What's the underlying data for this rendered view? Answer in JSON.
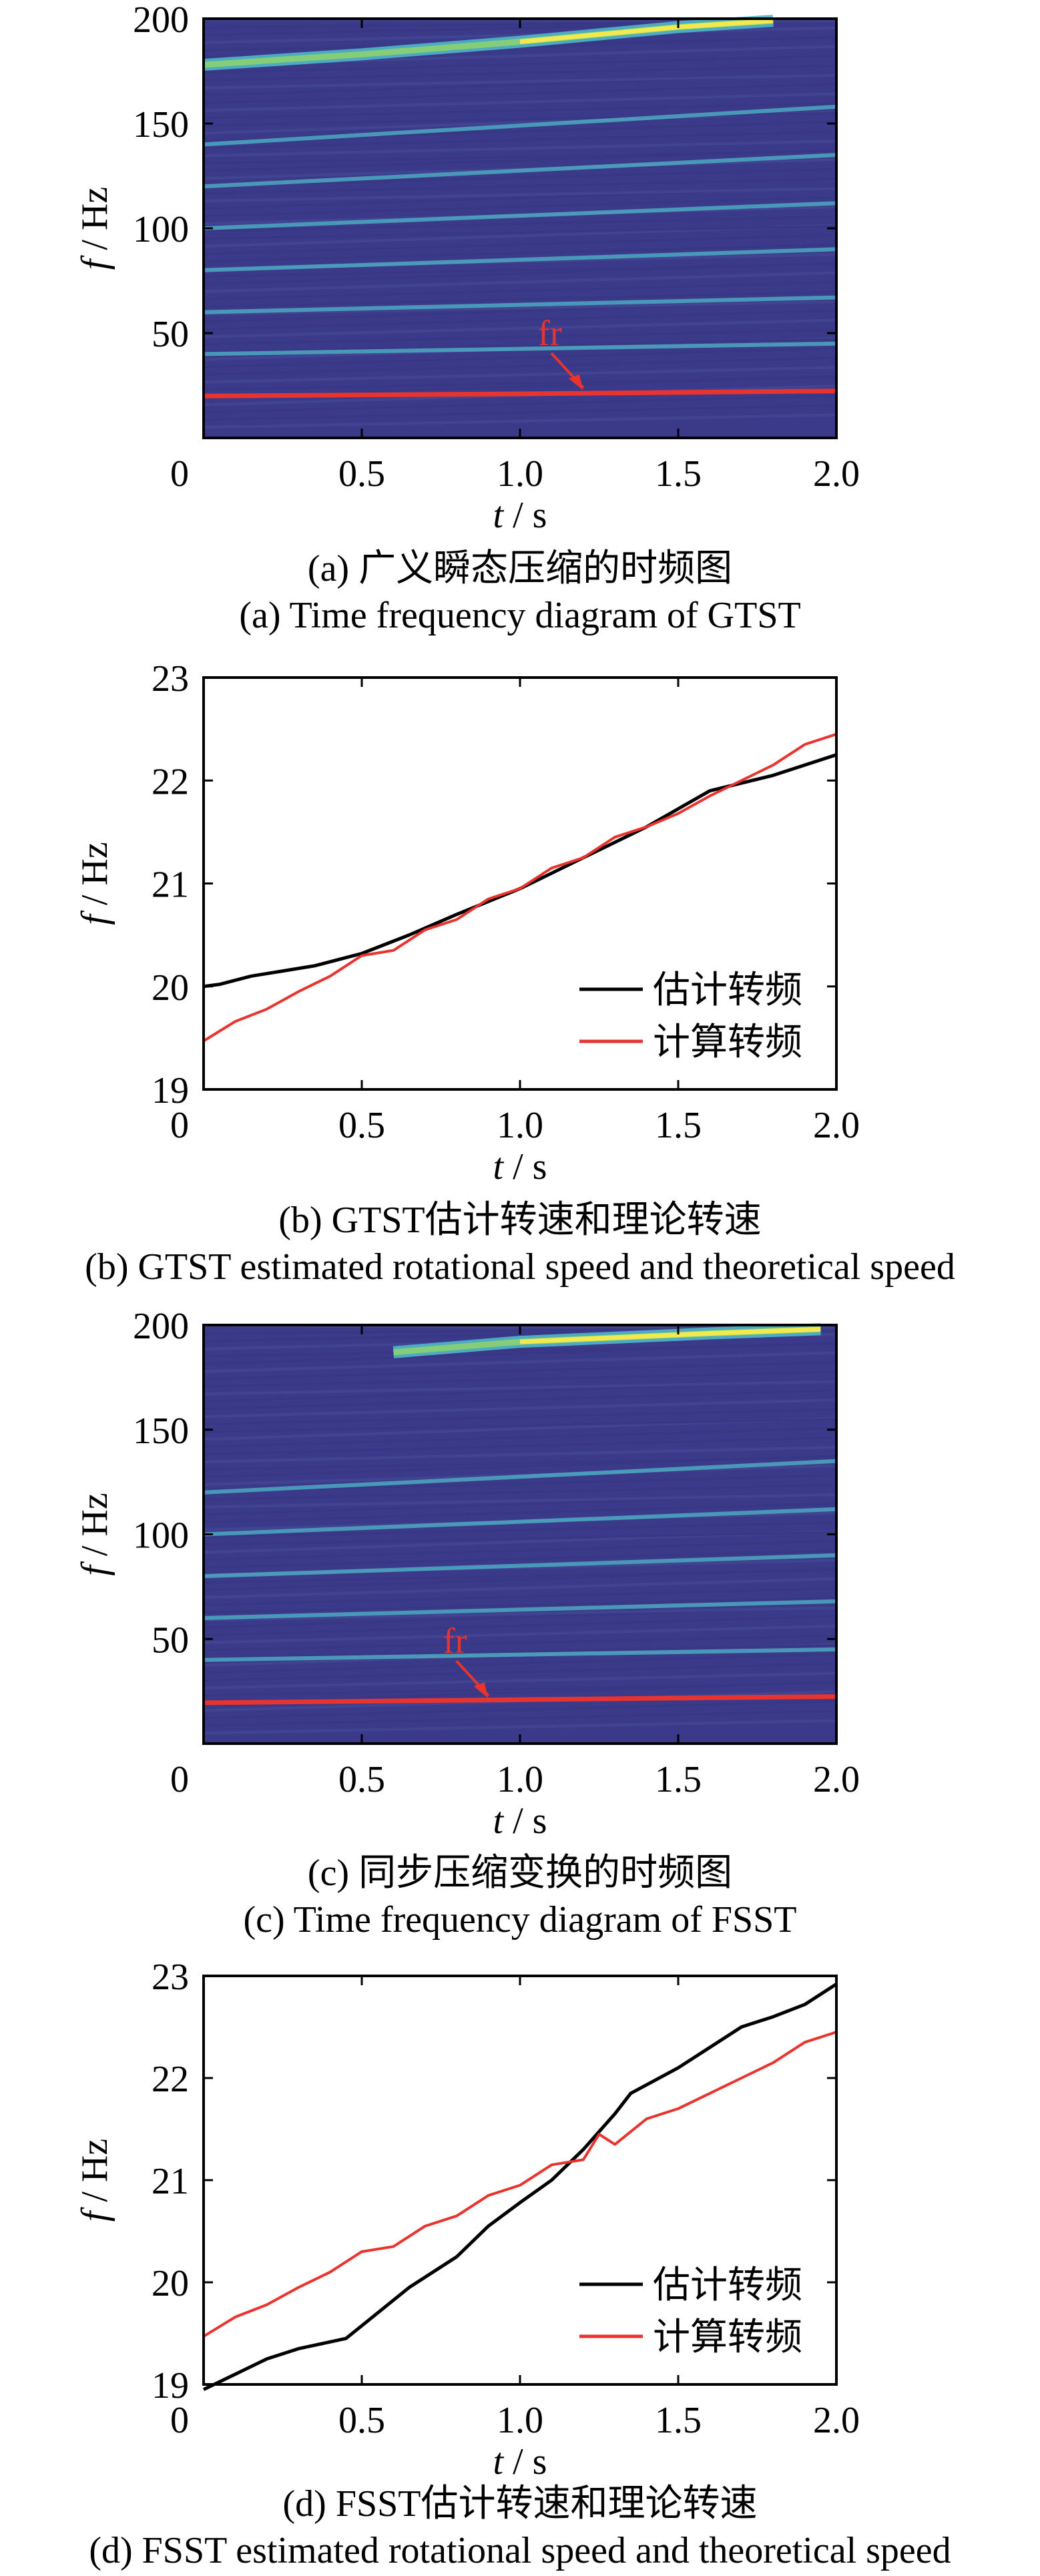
{
  "captions": {
    "a_cn": "(a)  广义瞬态压缩的时频图",
    "a_en": "(a)  Time frequency diagram of GTST",
    "b_cn": "(b)  GTST估计转速和理论转速",
    "b_en": "(b)  GTST estimated rotational speed and theoretical speed",
    "c_cn": "(c)  同步压缩变换的时频图",
    "c_en": "(c)  Time frequency diagram of FSST",
    "d_cn": "(d)  FSST估计转速和理论转速",
    "d_en": "(d)  FSST estimated rotational speed and theoretical speed"
  },
  "colors": {
    "background": "#3b3a8a",
    "ridge": "#4fb8c8",
    "ridge_hot": "#f2e94e",
    "ridge_warm": "#8fd36a",
    "fr_line": "#e8332e",
    "estimated": "#000000",
    "calculated": "#e8332e"
  },
  "chart_data": [
    {
      "id": "a",
      "type": "heatmap",
      "title": "",
      "xlabel": "t / s",
      "ylabel": "f / Hz",
      "xlim": [
        0,
        2.0
      ],
      "ylim": [
        0,
        200
      ],
      "xticks": [
        "0",
        "0.5",
        "1.0",
        "1.5",
        "2.0"
      ],
      "yticks": [
        "50",
        "100",
        "150",
        "200"
      ],
      "ridges": [
        {
          "name": "fr",
          "x": [
            0,
            1,
            2
          ],
          "y": [
            20,
            21,
            22.4
          ]
        },
        {
          "name": "h2",
          "x": [
            0,
            2
          ],
          "y": [
            40,
            45
          ]
        },
        {
          "name": "h3",
          "x": [
            0,
            2
          ],
          "y": [
            60,
            67
          ]
        },
        {
          "name": "h4",
          "x": [
            0,
            2
          ],
          "y": [
            80,
            90
          ]
        },
        {
          "name": "h5",
          "x": [
            0,
            2
          ],
          "y": [
            100,
            112
          ]
        },
        {
          "name": "h6",
          "x": [
            0,
            2
          ],
          "y": [
            120,
            135
          ]
        },
        {
          "name": "h7",
          "x": [
            0,
            2
          ],
          "y": [
            140,
            158
          ]
        },
        {
          "name": "h8",
          "x": [
            0,
            0.5,
            1.0,
            1.5,
            1.8
          ],
          "y": [
            178,
            183,
            189,
            196,
            199
          ]
        }
      ],
      "annotation": {
        "text": "fr",
        "x": 1.12,
        "y": 22
      }
    },
    {
      "id": "b",
      "type": "line",
      "title": "",
      "xlabel": "t / s",
      "ylabel": "f / Hz",
      "xlim": [
        0,
        2.0
      ],
      "ylim": [
        19,
        23
      ],
      "xticks": [
        "0",
        "0.5",
        "1.0",
        "1.5",
        "2.0"
      ],
      "yticks": [
        "19",
        "20",
        "21",
        "22",
        "23"
      ],
      "legend": {
        "position": "bottom-right",
        "entries": [
          "估计转频",
          "计算转频"
        ]
      },
      "series": [
        {
          "name": "估计转频",
          "x": [
            0,
            0.05,
            0.15,
            0.25,
            0.35,
            0.5,
            0.65,
            0.8,
            1.0,
            1.2,
            1.4,
            1.6,
            1.8,
            2.0
          ],
          "y": [
            20.0,
            20.02,
            20.1,
            20.15,
            20.2,
            20.32,
            20.5,
            20.7,
            20.95,
            21.25,
            21.55,
            21.9,
            22.05,
            22.25
          ]
        },
        {
          "name": "计算转频",
          "x": [
            0,
            0.1,
            0.2,
            0.3,
            0.4,
            0.5,
            0.6,
            0.7,
            0.8,
            0.9,
            1.0,
            1.1,
            1.2,
            1.3,
            1.4,
            1.5,
            1.6,
            1.7,
            1.8,
            1.9,
            2.0
          ],
          "y": [
            19.47,
            19.66,
            19.78,
            19.95,
            20.1,
            20.3,
            20.35,
            20.55,
            20.65,
            20.85,
            20.95,
            21.15,
            21.25,
            21.45,
            21.55,
            21.68,
            21.85,
            22.0,
            22.15,
            22.35,
            22.45
          ]
        }
      ]
    },
    {
      "id": "c",
      "type": "heatmap",
      "title": "",
      "xlabel": "t / s",
      "ylabel": "f / Hz",
      "xlim": [
        0,
        2.0
      ],
      "ylim": [
        0,
        200
      ],
      "xticks": [
        "0",
        "0.5",
        "1.0",
        "1.5",
        "2.0"
      ],
      "yticks": [
        "50",
        "100",
        "150",
        "200"
      ],
      "ridges": [
        {
          "name": "fr",
          "x": [
            0,
            1,
            2
          ],
          "y": [
            19.5,
            21,
            22.5
          ]
        },
        {
          "name": "h2",
          "x": [
            0,
            2
          ],
          "y": [
            40,
            45
          ]
        },
        {
          "name": "h3",
          "x": [
            0,
            2
          ],
          "y": [
            60,
            68
          ]
        },
        {
          "name": "h4",
          "x": [
            0,
            2
          ],
          "y": [
            80,
            90
          ]
        },
        {
          "name": "h5",
          "x": [
            0,
            2
          ],
          "y": [
            100,
            112
          ]
        },
        {
          "name": "h6",
          "x": [
            0,
            2
          ],
          "y": [
            120,
            135
          ]
        },
        {
          "name": "h7",
          "x": [
            0.6,
            1.0,
            1.6,
            1.95
          ],
          "y": [
            187,
            192,
            196,
            198
          ]
        }
      ],
      "annotation": {
        "text": "fr",
        "x": 0.82,
        "y": 21
      }
    },
    {
      "id": "d",
      "type": "line",
      "title": "",
      "xlabel": "t / s",
      "ylabel": "f / Hz",
      "xlim": [
        0,
        2.0
      ],
      "ylim": [
        19,
        23
      ],
      "xticks": [
        "0",
        "0.5",
        "1.0",
        "1.5",
        "2.0"
      ],
      "yticks": [
        "19",
        "20",
        "21",
        "22",
        "23"
      ],
      "legend": {
        "position": "bottom-right",
        "entries": [
          "估计转频",
          "计算转频"
        ]
      },
      "series": [
        {
          "name": "估计转频",
          "x": [
            0,
            0.1,
            0.2,
            0.3,
            0.45,
            0.55,
            0.65,
            0.8,
            0.9,
            1.0,
            1.1,
            1.2,
            1.3,
            1.35,
            1.5,
            1.6,
            1.7,
            1.8,
            1.9,
            2.0
          ],
          "y": [
            18.95,
            19.1,
            19.25,
            19.35,
            19.45,
            19.7,
            19.95,
            20.25,
            20.55,
            20.78,
            21.0,
            21.3,
            21.65,
            21.85,
            22.1,
            22.3,
            22.5,
            22.6,
            22.72,
            22.92
          ]
        },
        {
          "name": "计算转频",
          "x": [
            0,
            0.1,
            0.2,
            0.3,
            0.4,
            0.5,
            0.6,
            0.7,
            0.8,
            0.9,
            1.0,
            1.1,
            1.2,
            1.25,
            1.3,
            1.4,
            1.5,
            1.6,
            1.7,
            1.8,
            1.9,
            2.0
          ],
          "y": [
            19.47,
            19.66,
            19.78,
            19.95,
            20.1,
            20.3,
            20.35,
            20.55,
            20.65,
            20.85,
            20.95,
            21.15,
            21.2,
            21.45,
            21.35,
            21.6,
            21.7,
            21.85,
            22.0,
            22.15,
            22.35,
            22.45
          ]
        }
      ]
    }
  ]
}
